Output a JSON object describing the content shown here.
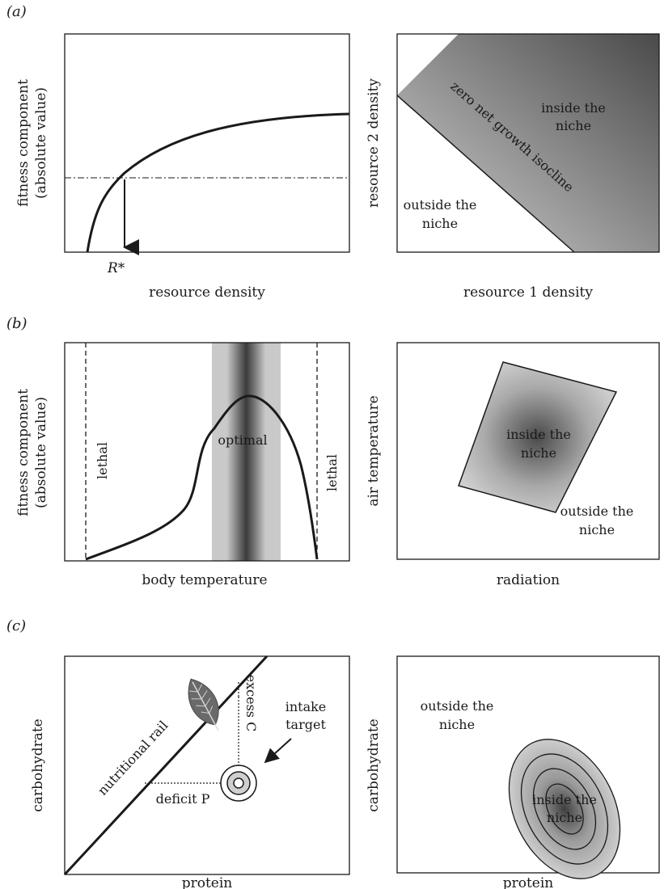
{
  "panels": {
    "a": {
      "letter": "(a)",
      "left": {
        "ylabel_line1": "fitness component",
        "ylabel_line2": "(absolute value)",
        "xlabel": "resource density",
        "rstar": "R*"
      },
      "right": {
        "ylabel": "resource 2 density",
        "xlabel": "resource 1 density",
        "isocline": "zero net growth isocline",
        "inside_line1": "inside the",
        "inside_line2": "niche",
        "outside_line1": "outside the",
        "outside_line2": "niche"
      }
    },
    "b": {
      "letter": "(b)",
      "left": {
        "ylabel_line1": "fitness component",
        "ylabel_line2": "(absolute value)",
        "xlabel": "body temperature",
        "lethal_left": "lethal",
        "lethal_right": "lethal",
        "optimal": "optimal"
      },
      "right": {
        "ylabel": "air temperature",
        "xlabel": "radiation",
        "inside_line1": "inside the",
        "inside_line2": "niche",
        "outside_line1": "outside the",
        "outside_line2": "niche"
      }
    },
    "c": {
      "letter": "(c)",
      "left": {
        "ylabel": "carbohydrate",
        "xlabel": "protein",
        "rail": "nutritional rail",
        "excess": "excess C",
        "deficit": "deficit P",
        "target_line1": "intake",
        "target_line2": "target",
        "leaf_icon": "leaf-icon"
      },
      "right": {
        "ylabel": "carbohydrate",
        "xlabel": "protein",
        "outside_line1": "outside the",
        "outside_line2": "niche",
        "inside_line1": "inside the",
        "inside_line2": "niche"
      }
    }
  },
  "colors": {
    "ink": "#1a1a1a",
    "shade_dark": "#3c3c3c",
    "shade_light": "#c8c8c8"
  }
}
